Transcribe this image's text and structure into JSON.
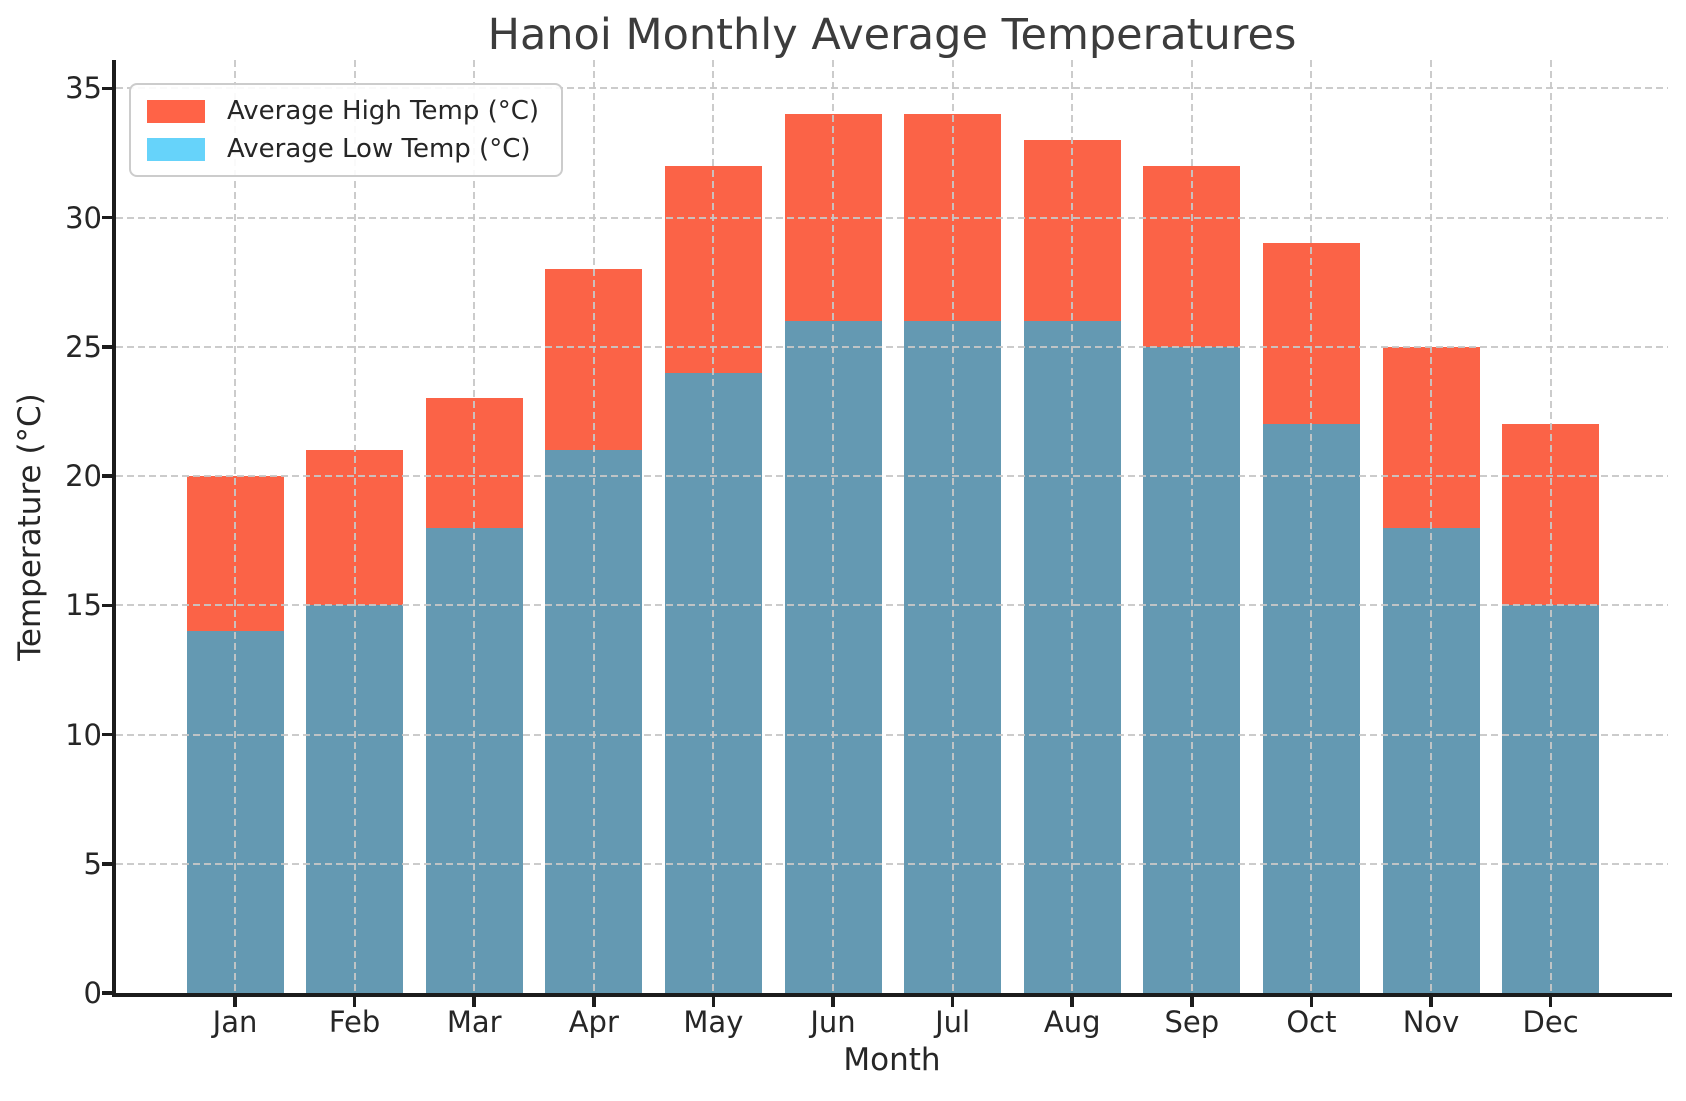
{
  "title": "Hanoi Monthly Average Temperatures",
  "chart_data": {
    "type": "bar",
    "bar_style": "overlaid",
    "title": "Hanoi Monthly Average Temperatures",
    "xlabel": "Month",
    "ylabel": "Temperature (°C)",
    "categories": [
      "Jan",
      "Feb",
      "Mar",
      "Apr",
      "May",
      "Jun",
      "Jul",
      "Aug",
      "Sep",
      "Oct",
      "Nov",
      "Dec"
    ],
    "series": [
      {
        "name": "Average High Temp (°C)",
        "values": [
          20,
          21,
          23,
          28,
          32,
          34,
          34,
          33,
          32,
          29,
          25,
          22
        ],
        "bar_color": "#fb6347",
        "legend_color": "#ff6347"
      },
      {
        "name": "Average Low Temp (°C)",
        "values": [
          14,
          15,
          18,
          21,
          24,
          26,
          26,
          26,
          25,
          22,
          18,
          15
        ],
        "bar_color": "#6499b2",
        "legend_color": "#66d3fa"
      }
    ],
    "ylim": [
      0,
      35
    ],
    "y_ticks": [
      0,
      5,
      10,
      15,
      20,
      25,
      30,
      35
    ],
    "grid": {
      "show": true,
      "style": "dashed",
      "color": "#c9c9c9",
      "above_bars": true
    },
    "legend": {
      "position": "upper-left",
      "entries": [
        "Average High Temp (°C)",
        "Average Low Temp (°C)"
      ]
    }
  }
}
